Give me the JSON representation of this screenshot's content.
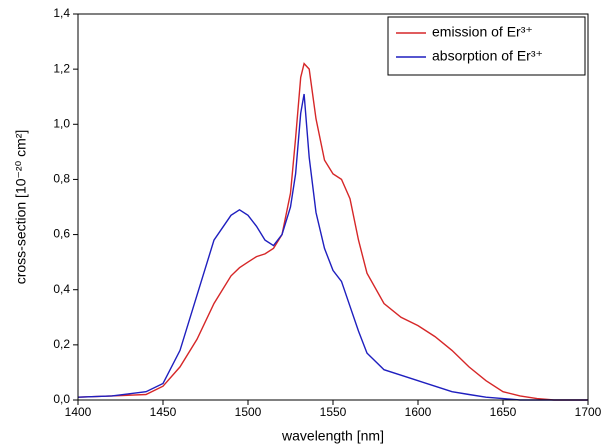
{
  "chart_data": {
    "type": "line",
    "x_label": "wavelength [nm]",
    "y_label": "cross-section [10⁻²⁰ cm²]",
    "x": [
      1400,
      1420,
      1440,
      1450,
      1460,
      1470,
      1480,
      1490,
      1495,
      1500,
      1505,
      1510,
      1515,
      1520,
      1525,
      1528,
      1531,
      1533,
      1536,
      1540,
      1545,
      1550,
      1555,
      1560,
      1565,
      1570,
      1580,
      1590,
      1600,
      1610,
      1620,
      1630,
      1640,
      1650,
      1660,
      1670,
      1680,
      1700
    ],
    "series": [
      {
        "name": "emission of Er³⁺",
        "color": "#d62728",
        "values": [
          0.01,
          0.015,
          0.02,
          0.05,
          0.12,
          0.22,
          0.35,
          0.45,
          0.48,
          0.5,
          0.52,
          0.53,
          0.55,
          0.6,
          0.75,
          0.95,
          1.17,
          1.22,
          1.2,
          1.02,
          0.87,
          0.82,
          0.8,
          0.73,
          0.58,
          0.46,
          0.35,
          0.3,
          0.27,
          0.23,
          0.18,
          0.12,
          0.07,
          0.03,
          0.015,
          0.005,
          0,
          0
        ]
      },
      {
        "name": "absorption of Er³⁺",
        "color": "#1f1fbf",
        "values": [
          0.01,
          0.015,
          0.03,
          0.06,
          0.18,
          0.38,
          0.58,
          0.67,
          0.69,
          0.67,
          0.63,
          0.58,
          0.56,
          0.6,
          0.7,
          0.82,
          1.04,
          1.11,
          0.88,
          0.68,
          0.55,
          0.47,
          0.43,
          0.34,
          0.25,
          0.17,
          0.11,
          0.09,
          0.07,
          0.05,
          0.03,
          0.02,
          0.01,
          0.005,
          0,
          0,
          0,
          0
        ]
      }
    ],
    "xlim": [
      1400,
      1700
    ],
    "xticks": [
      1400,
      1450,
      1500,
      1550,
      1600,
      1650,
      1700
    ],
    "ylim": [
      0,
      1.4
    ],
    "yticks": [
      {
        "value": 0,
        "label": "0,0"
      },
      {
        "value": 0.2,
        "label": "0,2"
      },
      {
        "value": 0.4,
        "label": "0,4"
      },
      {
        "value": 0.6,
        "label": "0,6"
      },
      {
        "value": 0.8,
        "label": "0,8"
      },
      {
        "value": 1.0,
        "label": "1,0"
      },
      {
        "value": 1.2,
        "label": "1,2"
      },
      {
        "value": 1.4,
        "label": "1,4"
      }
    ],
    "legend": "top-right"
  }
}
